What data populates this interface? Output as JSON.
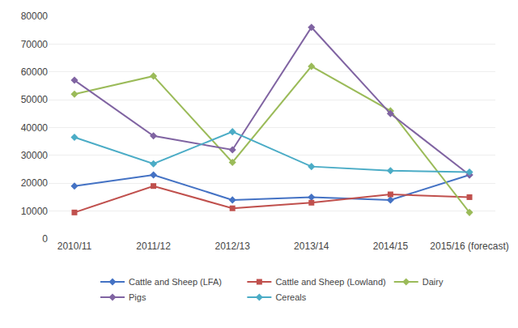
{
  "chart_data": {
    "type": "line",
    "categories": [
      "2010/11",
      "2011/12",
      "2012/13",
      "2013/14",
      "2014/15",
      "2015/16 (forecast)"
    ],
    "series": [
      {
        "name": "Cattle and Sheep (LFA)",
        "color": "#4472C4",
        "marker": "diamond",
        "values": [
          19000,
          23000,
          14000,
          15000,
          14000,
          23000
        ]
      },
      {
        "name": "Cattle and Sheep (Lowland)",
        "color": "#C0504D",
        "marker": "square",
        "values": [
          9500,
          19000,
          11000,
          13000,
          16000,
          15000
        ]
      },
      {
        "name": "Dairy",
        "color": "#9BBB59",
        "marker": "diamond",
        "values": [
          52000,
          58500,
          27500,
          62000,
          46000,
          9500
        ]
      },
      {
        "name": "Pigs",
        "color": "#8064A2",
        "marker": "diamond",
        "values": [
          57000,
          37000,
          32000,
          76000,
          45000,
          23000
        ]
      },
      {
        "name": "Cereals",
        "color": "#4BACC6",
        "marker": "diamond",
        "values": [
          36500,
          27000,
          38500,
          26000,
          24500,
          24000
        ]
      }
    ],
    "ylim": [
      0,
      80000
    ],
    "yticks": [
      0,
      10000,
      20000,
      30000,
      40000,
      50000,
      60000,
      70000,
      80000
    ],
    "grid": true,
    "legend": "bottom"
  }
}
